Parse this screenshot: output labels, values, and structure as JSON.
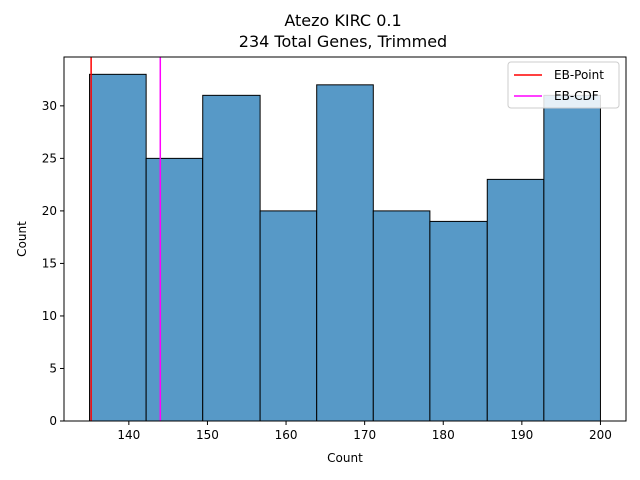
{
  "chart_data": {
    "type": "bar",
    "title": [
      "Atezo KIRC 0.1",
      "234 Total Genes, Trimmed"
    ],
    "xlabel": "Count",
    "ylabel": "Count",
    "bins": [
      {
        "start": 135.0,
        "end": 142.2,
        "count": 33
      },
      {
        "start": 142.2,
        "end": 149.4,
        "count": 25
      },
      {
        "start": 149.4,
        "end": 156.7,
        "count": 31
      },
      {
        "start": 156.7,
        "end": 163.9,
        "count": 20
      },
      {
        "start": 163.9,
        "end": 171.1,
        "count": 32
      },
      {
        "start": 171.1,
        "end": 178.3,
        "count": 20
      },
      {
        "start": 178.3,
        "end": 185.6,
        "count": 19
      },
      {
        "start": 185.6,
        "end": 192.8,
        "count": 23
      },
      {
        "start": 192.8,
        "end": 200.0,
        "count": 31
      }
    ],
    "xlim": [
      131.75,
      203.25
    ],
    "ylim": [
      0,
      34.65
    ],
    "xticks": [
      140,
      150,
      160,
      170,
      180,
      190,
      200
    ],
    "yticks": [
      0,
      5,
      10,
      15,
      20,
      25,
      30
    ],
    "bar_color": "#5799c7",
    "vlines": [
      {
        "name": "EB-Point",
        "x": 135.2,
        "color": "#ff0000"
      },
      {
        "name": "EB-CDF",
        "x": 144.0,
        "color": "#ff00ff"
      }
    ],
    "legend": {
      "position": "top-right"
    },
    "grid": false
  }
}
